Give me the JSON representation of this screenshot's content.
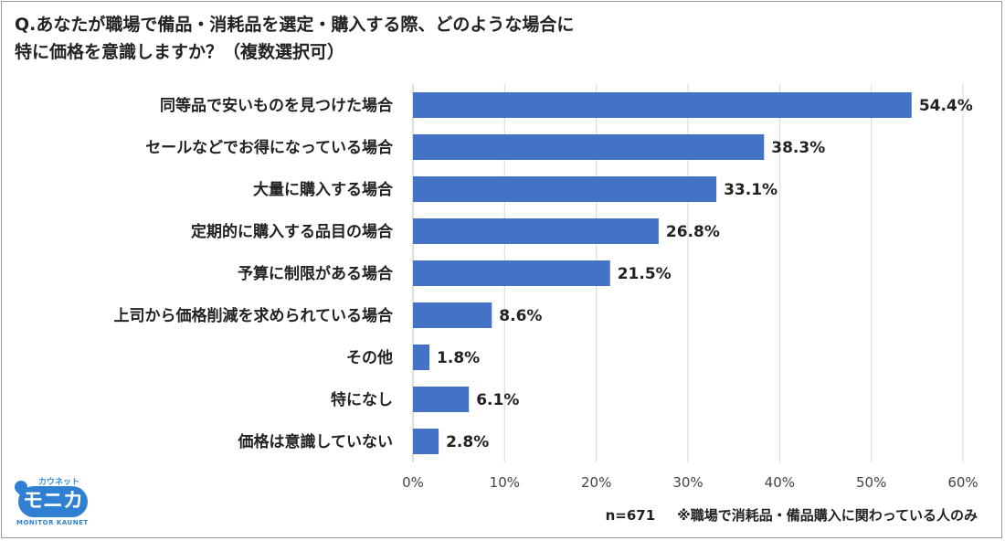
{
  "question": {
    "line1": "Q.あなたが職場で備品・消耗品を選定・購入する際、どのような場合に",
    "line2": "特に価格を意識しますか？（複数選択可）"
  },
  "chart_data": {
    "type": "bar",
    "orientation": "horizontal",
    "categories": [
      "同等品で安いものを見つけた場合",
      "セールなどでお得になっている場合",
      "大量に購入する場合",
      "定期的に購入する品目の場合",
      "予算に制限がある場合",
      "上司から価格削減を求められている場合",
      "その他",
      "特になし",
      "価格は意識していない"
    ],
    "values": [
      54.4,
      38.3,
      33.1,
      26.8,
      21.5,
      8.6,
      1.8,
      6.1,
      2.8
    ],
    "value_labels": [
      "54.4%",
      "38.3%",
      "33.1%",
      "26.8%",
      "21.5%",
      "8.6%",
      "1.8%",
      "6.1%",
      "2.8%"
    ],
    "xlim": [
      0,
      60
    ],
    "xticks": [
      "0%",
      "10%",
      "20%",
      "30%",
      "40%",
      "50%",
      "60%"
    ],
    "grid": true,
    "bar_color": "#4472c4"
  },
  "footer": {
    "sample": "n=671",
    "note": "※職場で消耗品・備品購入に関わっている人のみ"
  },
  "logo": {
    "kana": "カウネット",
    "name": "モニカ",
    "caption": "MONITOR KAUNET"
  }
}
